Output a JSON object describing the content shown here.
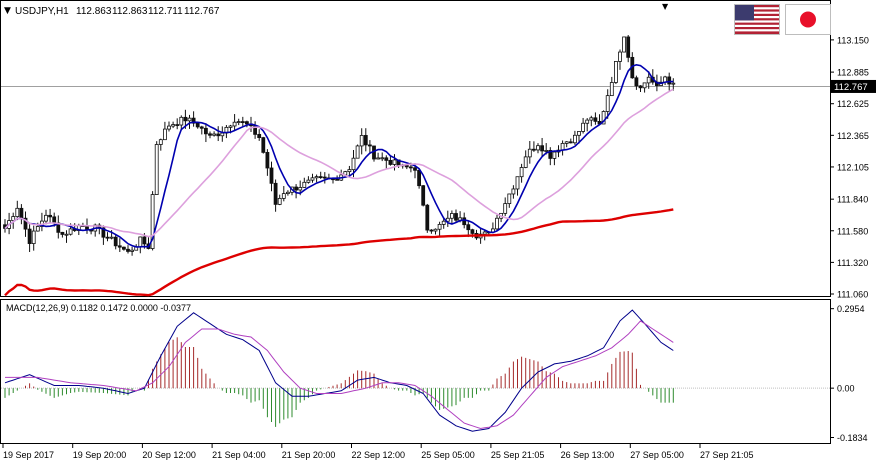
{
  "header": {
    "symbol": "USDJPY,H1",
    "open": "112.863",
    "high": "112.863",
    "low": "112.711",
    "close": "112.767",
    "arrow": "▼"
  },
  "macd_header": "MACD(12,26,9) 0.1182 0.1472 0.0000 -0.0377",
  "flags": {
    "base": "us-flag-icon",
    "quote": "japan-flag-icon"
  },
  "colors": {
    "bull": "#111111",
    "bear": "#111111",
    "ma_fast": "#0000b0",
    "ma_mid": "#dda0dd",
    "ma_slow": "#dd0000",
    "hist_pos": "#a52a2a",
    "hist_neg": "#2e8b2e",
    "macd_main": "#00008b",
    "macd_signal": "#b040c0",
    "current_price_bg": "#000000"
  },
  "chart_data": [
    {
      "type": "candlestick",
      "title": "USDJPY,H1",
      "ylim": [
        111.06,
        113.33
      ],
      "y_ticks": [
        "113.150",
        "112.885",
        "112.625",
        "112.365",
        "112.105",
        "111.840",
        "111.580",
        "111.320",
        "111.060"
      ],
      "current_price": "112.767",
      "x_ticks": [
        "19 Sep 2017",
        "19 Sep 20:00",
        "20 Sep 12:00",
        "21 Sep 04:00",
        "21 Sep 20:00",
        "22 Sep 12:00",
        "25 Sep 05:00",
        "25 Sep 21:05",
        "26 Sep 13:00",
        "27 Sep 05:00",
        "27 Sep 21:05"
      ],
      "close_anchors": [
        [
          0,
          111.6
        ],
        [
          3,
          111.78
        ],
        [
          6,
          111.5
        ],
        [
          10,
          111.72
        ],
        [
          14,
          111.55
        ],
        [
          18,
          111.62
        ],
        [
          22,
          111.6
        ],
        [
          26,
          111.5
        ],
        [
          30,
          111.4
        ],
        [
          33,
          111.5
        ],
        [
          35,
          111.45
        ],
        [
          37,
          112.3
        ],
        [
          40,
          112.45
        ],
        [
          44,
          112.5
        ],
        [
          47,
          112.45
        ],
        [
          50,
          112.35
        ],
        [
          53,
          112.4
        ],
        [
          56,
          112.5
        ],
        [
          59,
          112.45
        ],
        [
          62,
          112.35
        ],
        [
          64,
          112.1
        ],
        [
          66,
          111.8
        ],
        [
          68,
          111.9
        ],
        [
          72,
          111.95
        ],
        [
          76,
          112.0
        ],
        [
          80,
          112.0
        ],
        [
          84,
          112.1
        ],
        [
          87,
          112.35
        ],
        [
          90,
          112.2
        ],
        [
          94,
          112.15
        ],
        [
          97,
          112.1
        ],
        [
          100,
          112.1
        ],
        [
          103,
          111.6
        ],
        [
          106,
          111.62
        ],
        [
          109,
          111.7
        ],
        [
          112,
          111.65
        ],
        [
          115,
          111.55
        ],
        [
          118,
          111.55
        ],
        [
          121,
          111.75
        ],
        [
          124,
          111.95
        ],
        [
          127,
          112.2
        ],
        [
          130,
          112.3
        ],
        [
          133,
          112.2
        ],
        [
          136,
          112.3
        ],
        [
          139,
          112.35
        ],
        [
          142,
          112.5
        ],
        [
          145,
          112.45
        ],
        [
          147,
          112.7
        ],
        [
          149,
          112.95
        ],
        [
          151,
          113.2
        ],
        [
          153,
          112.85
        ],
        [
          155,
          112.75
        ],
        [
          157,
          112.85
        ],
        [
          159,
          112.75
        ],
        [
          161,
          112.85
        ],
        [
          163,
          112.77
        ]
      ],
      "series": [
        {
          "name": "MA fast",
          "window": 7
        },
        {
          "name": "MA mid",
          "window": 24
        },
        {
          "name": "MA slow",
          "window": 100
        }
      ]
    },
    {
      "type": "macd",
      "title": "MACD(12,26,9)",
      "ylim": [
        -0.1964,
        0.3165
      ],
      "y_ticks": [
        "0.2954",
        "0.00",
        "-0.1834"
      ],
      "zero_line": true,
      "main_anchors": [
        [
          0,
          0.02
        ],
        [
          6,
          0.05
        ],
        [
          12,
          0.01
        ],
        [
          18,
          0.01
        ],
        [
          24,
          0.0
        ],
        [
          30,
          -0.02
        ],
        [
          34,
          0.0
        ],
        [
          38,
          0.12
        ],
        [
          42,
          0.23
        ],
        [
          46,
          0.28
        ],
        [
          50,
          0.24
        ],
        [
          54,
          0.2
        ],
        [
          58,
          0.18
        ],
        [
          62,
          0.14
        ],
        [
          66,
          0.02
        ],
        [
          70,
          -0.03
        ],
        [
          74,
          -0.03
        ],
        [
          78,
          -0.02
        ],
        [
          82,
          -0.01
        ],
        [
          86,
          0.03
        ],
        [
          90,
          0.04
        ],
        [
          94,
          0.02
        ],
        [
          98,
          0.01
        ],
        [
          102,
          -0.02
        ],
        [
          106,
          -0.1
        ],
        [
          110,
          -0.14
        ],
        [
          114,
          -0.16
        ],
        [
          118,
          -0.15
        ],
        [
          122,
          -0.09
        ],
        [
          126,
          0.0
        ],
        [
          130,
          0.06
        ],
        [
          134,
          0.09
        ],
        [
          138,
          0.1
        ],
        [
          142,
          0.12
        ],
        [
          146,
          0.15
        ],
        [
          150,
          0.25
        ],
        [
          153,
          0.29
        ],
        [
          156,
          0.24
        ],
        [
          160,
          0.17
        ],
        [
          163,
          0.14
        ]
      ],
      "signal_anchors": [
        [
          0,
          0.04
        ],
        [
          8,
          0.04
        ],
        [
          16,
          0.02
        ],
        [
          24,
          0.01
        ],
        [
          32,
          -0.01
        ],
        [
          36,
          0.02
        ],
        [
          40,
          0.08
        ],
        [
          44,
          0.17
        ],
        [
          48,
          0.22
        ],
        [
          52,
          0.22
        ],
        [
          56,
          0.2
        ],
        [
          60,
          0.19
        ],
        [
          64,
          0.14
        ],
        [
          68,
          0.06
        ],
        [
          72,
          0.0
        ],
        [
          76,
          -0.02
        ],
        [
          82,
          -0.02
        ],
        [
          88,
          0.0
        ],
        [
          92,
          0.02
        ],
        [
          96,
          0.02
        ],
        [
          100,
          0.01
        ],
        [
          104,
          -0.03
        ],
        [
          108,
          -0.08
        ],
        [
          112,
          -0.13
        ],
        [
          116,
          -0.15
        ],
        [
          120,
          -0.14
        ],
        [
          124,
          -0.1
        ],
        [
          128,
          -0.03
        ],
        [
          132,
          0.04
        ],
        [
          136,
          0.08
        ],
        [
          140,
          0.1
        ],
        [
          144,
          0.12
        ],
        [
          148,
          0.15
        ],
        [
          152,
          0.2
        ],
        [
          155,
          0.25
        ],
        [
          158,
          0.22
        ],
        [
          163,
          0.17
        ]
      ]
    }
  ]
}
